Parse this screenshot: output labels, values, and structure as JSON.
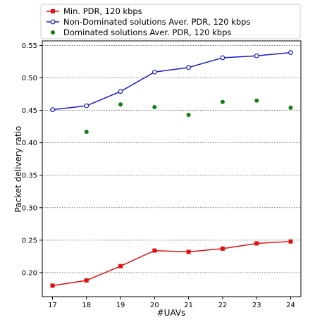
{
  "chart_data": {
    "type": "line",
    "xlabel": "#UAVs",
    "ylabel": "Packet delivery ratio",
    "x": [
      17,
      18,
      19,
      20,
      21,
      22,
      23,
      24
    ],
    "xlim": [
      16.7,
      24.3
    ],
    "ylim": [
      0.163,
      0.557
    ],
    "yticks": [
      0.2,
      0.25,
      0.3,
      0.35,
      0.4,
      0.45,
      0.5,
      0.55
    ],
    "ytick_labels": [
      "0.20",
      "0.25",
      "0.30",
      "0.35",
      "0.40",
      "0.45",
      "0.50",
      "0.55"
    ],
    "xtick_labels": [
      "17",
      "18",
      "19",
      "20",
      "21",
      "22",
      "23",
      "24"
    ],
    "grid": "horizontal-dotted",
    "legend_position": "top-center-outside",
    "series": [
      {
        "name": "Min. PDR, 120 kbps",
        "style": "line-square",
        "color": "#dd1111",
        "x": [
          17,
          18,
          19,
          20,
          21,
          22,
          23,
          24
        ],
        "values": [
          0.18,
          0.188,
          0.21,
          0.234,
          0.232,
          0.237,
          0.245,
          0.248
        ]
      },
      {
        "name": "Non-Dominated solutions Aver. PDR, 120 kbps",
        "style": "line-open-circle",
        "color": "#1a1acc",
        "x": [
          17,
          18,
          19,
          20,
          21,
          22,
          23,
          24
        ],
        "values": [
          0.451,
          0.457,
          0.479,
          0.509,
          0.516,
          0.531,
          0.534,
          0.539
        ]
      },
      {
        "name": "Dominated solutions Aver. PDR, 120 kbps",
        "style": "scatter",
        "color": "#108010",
        "x": [
          18,
          19,
          20,
          21,
          22,
          23,
          24
        ],
        "values": [
          0.417,
          0.459,
          0.455,
          0.443,
          0.463,
          0.465,
          0.454
        ]
      }
    ]
  }
}
